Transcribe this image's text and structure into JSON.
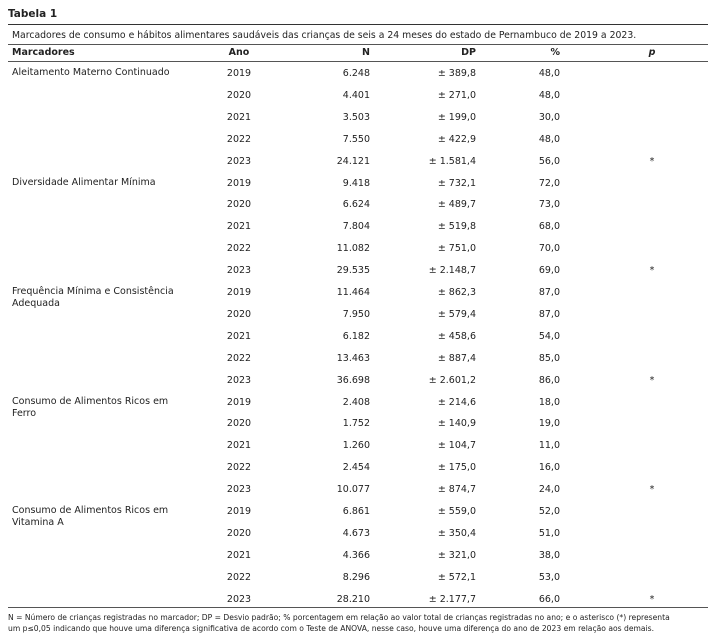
{
  "title": "Tabela 1",
  "caption": "Marcadores de consumo e hábitos alimentares saudáveis das crianças de seis a 24 meses do estado de Pernambuco de 2019 a 2023.",
  "table": {
    "header": [
      "Marcadores",
      "Ano",
      "N",
      "DP",
      "%",
      "p"
    ],
    "groups": [
      {
        "label": "Aleitamento Materno Continuado",
        "rows": [
          [
            "2019",
            "6.248",
            "± 389,8",
            "48,0"
          ],
          [
            "2020",
            "4.401",
            "± 271,0",
            "48,0"
          ],
          [
            "2021",
            "3.503",
            "± 199,0",
            "30,0"
          ],
          [
            "2022",
            "7.550",
            "± 422,9",
            "48,0"
          ],
          [
            "2023",
            "24.121",
            "± 1.581,4",
            "56,0",
            "*"
          ]
        ]
      },
      {
        "label": "Diversidade Alimentar Mínima",
        "rows": [
          [
            "2019",
            "9.418",
            "± 732,1",
            "72,0"
          ],
          [
            "2020",
            "6.624",
            "± 489,7",
            "73,0"
          ],
          [
            "2021",
            "7.804",
            "± 519,8",
            "68,0"
          ],
          [
            "2022",
            "11.082",
            "± 751,0",
            "70,0"
          ],
          [
            "2023",
            "29.535",
            "± 2.148,7",
            "69,0",
            "*"
          ]
        ]
      },
      {
        "label": "Frequência Mínima e Consistência Adequada",
        "rows": [
          [
            "2019",
            "11.464",
            "± 862,3",
            "87,0"
          ],
          [
            "2020",
            "7.950",
            "± 579,4",
            "87,0"
          ],
          [
            "2021",
            "6.182",
            "± 458,6",
            "54,0"
          ],
          [
            "2022",
            "13.463",
            "± 887,4",
            "85,0"
          ],
          [
            "2023",
            "36.698",
            "± 2.601,2",
            "86,0",
            "*"
          ]
        ]
      },
      {
        "label": "Consumo de Alimentos Ricos em Ferro",
        "rows": [
          [
            "2019",
            "2.408",
            "± 214,6",
            "18,0"
          ],
          [
            "2020",
            "1.752",
            "± 140,9",
            "19,0"
          ],
          [
            "2021",
            "1.260",
            "± 104,7",
            "11,0"
          ],
          [
            "2022",
            "2.454",
            "± 175,0",
            "16,0"
          ],
          [
            "2023",
            "10.077",
            "± 874,7",
            "24,0",
            "*"
          ]
        ]
      },
      {
        "label": "Consumo de Alimentos Ricos em Vitamina A",
        "rows": [
          [
            "2019",
            "6.861",
            "± 559,0",
            "52,0"
          ],
          [
            "2020",
            "4.673",
            "± 350,4",
            "51,0"
          ],
          [
            "2021",
            "4.366",
            "± 321,0",
            "38,0"
          ],
          [
            "2022",
            "8.296",
            "± 572,1",
            "53,0"
          ],
          [
            "2023",
            "28.210",
            "± 2.177,7",
            "66,0",
            "*"
          ]
        ]
      }
    ]
  },
  "footnote": [
    "N = Número de crianças registradas no marcador; DP = Desvio padrão; % porcentagem em relação ao valor total de crianças registradas no ano; e o asterisco (*) representa",
    "um p≤0,05 indicando que houve uma diferença significativa de acordo com o Teste de ANOVA, nesse caso, houve uma diferença do ano de 2023 em relação aos demais."
  ]
}
